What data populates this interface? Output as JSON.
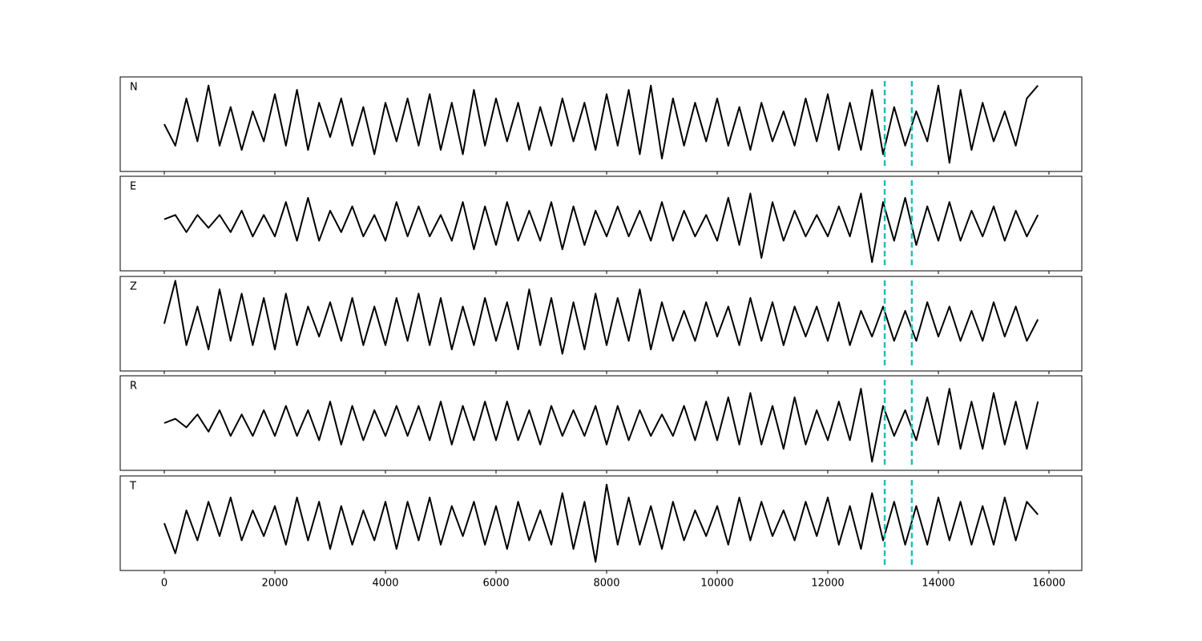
{
  "chart_data": {
    "type": "line",
    "color": "#000000",
    "grid": false,
    "xlim": [
      -797,
      16594
    ],
    "xticks": [
      0,
      2000,
      4000,
      6000,
      8000,
      10000,
      12000,
      14000,
      16000
    ],
    "ylim": [
      -1.1,
      1.1
    ],
    "vlines": [
      13030,
      13520
    ],
    "vline_color": "#20c0b8",
    "vline_style": "dashed",
    "x": [
      0,
      200,
      400,
      600,
      800,
      1000,
      1200,
      1400,
      1600,
      1800,
      2000,
      2200,
      2400,
      2600,
      2800,
      3000,
      3200,
      3400,
      3600,
      3800,
      4000,
      4200,
      4400,
      4600,
      4800,
      5000,
      5200,
      5400,
      5600,
      5800,
      6000,
      6200,
      6400,
      6600,
      6800,
      7000,
      7200,
      7400,
      7600,
      7800,
      8000,
      8200,
      8400,
      8600,
      8800,
      9000,
      9200,
      9400,
      9600,
      9800,
      10000,
      10200,
      10400,
      10600,
      10800,
      11000,
      11200,
      11400,
      11600,
      11800,
      12000,
      12200,
      12400,
      12600,
      12800,
      13000,
      13200,
      13400,
      13600,
      13800,
      14000,
      14200,
      14400,
      14600,
      14800,
      15000,
      15200,
      15400,
      15600,
      15800
    ],
    "series": [
      {
        "name": "N",
        "values": [
          0.0,
          -0.5,
          0.6,
          -0.4,
          0.9,
          -0.5,
          0.4,
          -0.6,
          0.3,
          -0.4,
          0.7,
          -0.5,
          0.8,
          -0.6,
          0.5,
          -0.3,
          0.6,
          -0.5,
          0.4,
          -0.7,
          0.5,
          -0.4,
          0.6,
          -0.5,
          0.7,
          -0.6,
          0.5,
          -0.7,
          0.8,
          -0.5,
          0.6,
          -0.4,
          0.5,
          -0.6,
          0.4,
          -0.5,
          0.6,
          -0.4,
          0.5,
          -0.6,
          0.7,
          -0.5,
          0.8,
          -0.7,
          0.9,
          -0.8,
          0.6,
          -0.5,
          0.5,
          -0.4,
          0.6,
          -0.5,
          0.4,
          -0.6,
          0.5,
          -0.4,
          0.3,
          -0.5,
          0.6,
          -0.4,
          0.7,
          -0.6,
          0.5,
          -0.6,
          0.8,
          -0.7,
          0.4,
          -0.5,
          0.3,
          -0.4,
          0.9,
          -0.9,
          0.8,
          -0.6,
          0.5,
          -0.4,
          0.3,
          -0.5,
          0.6,
          0.9
        ]
      },
      {
        "name": "E",
        "values": [
          0.1,
          0.2,
          -0.2,
          0.2,
          -0.1,
          0.2,
          -0.2,
          0.3,
          -0.3,
          0.2,
          -0.3,
          0.5,
          -0.4,
          0.6,
          -0.4,
          0.3,
          -0.2,
          0.4,
          -0.3,
          0.2,
          -0.4,
          0.5,
          -0.3,
          0.4,
          -0.3,
          0.2,
          -0.4,
          0.5,
          -0.6,
          0.4,
          -0.5,
          0.5,
          -0.4,
          0.3,
          -0.4,
          0.5,
          -0.6,
          0.4,
          -0.5,
          0.3,
          -0.3,
          0.4,
          -0.3,
          0.3,
          -0.4,
          0.5,
          -0.4,
          0.3,
          -0.3,
          0.2,
          -0.4,
          0.6,
          -0.5,
          0.7,
          -0.8,
          0.5,
          -0.4,
          0.3,
          -0.3,
          0.2,
          -0.3,
          0.4,
          -0.3,
          0.7,
          -0.9,
          0.5,
          -0.4,
          0.6,
          -0.5,
          0.4,
          -0.4,
          0.5,
          -0.4,
          0.3,
          -0.3,
          0.4,
          -0.4,
          0.3,
          -0.3,
          0.2
        ]
      },
      {
        "name": "Z",
        "values": [
          0.0,
          1.0,
          -0.5,
          0.4,
          -0.6,
          0.8,
          -0.4,
          0.7,
          -0.5,
          0.6,
          -0.6,
          0.7,
          -0.5,
          0.4,
          -0.3,
          0.5,
          -0.4,
          0.6,
          -0.5,
          0.4,
          -0.5,
          0.6,
          -0.4,
          0.7,
          -0.5,
          0.6,
          -0.6,
          0.4,
          -0.5,
          0.6,
          -0.4,
          0.5,
          -0.6,
          0.8,
          -0.5,
          0.6,
          -0.7,
          0.5,
          -0.6,
          0.7,
          -0.5,
          0.6,
          -0.4,
          0.8,
          -0.6,
          0.5,
          -0.4,
          0.3,
          -0.4,
          0.5,
          -0.3,
          0.4,
          -0.5,
          0.6,
          -0.4,
          0.5,
          -0.5,
          0.4,
          -0.3,
          0.4,
          -0.4,
          0.5,
          -0.5,
          0.3,
          -0.3,
          0.4,
          -0.4,
          0.3,
          -0.4,
          0.5,
          -0.3,
          0.4,
          -0.4,
          0.3,
          -0.4,
          0.5,
          -0.3,
          0.4,
          -0.4,
          0.1
        ]
      },
      {
        "name": "R",
        "values": [
          0.0,
          0.1,
          -0.1,
          0.2,
          -0.2,
          0.3,
          -0.3,
          0.2,
          -0.3,
          0.3,
          -0.3,
          0.4,
          -0.3,
          0.3,
          -0.4,
          0.5,
          -0.5,
          0.4,
          -0.4,
          0.3,
          -0.3,
          0.4,
          -0.3,
          0.4,
          -0.4,
          0.5,
          -0.5,
          0.4,
          -0.4,
          0.5,
          -0.4,
          0.5,
          -0.4,
          0.3,
          -0.5,
          0.4,
          -0.3,
          0.3,
          -0.3,
          0.4,
          -0.5,
          0.4,
          -0.4,
          0.3,
          -0.3,
          0.2,
          -0.3,
          0.4,
          -0.4,
          0.5,
          -0.4,
          0.6,
          -0.5,
          0.7,
          -0.5,
          0.4,
          -0.6,
          0.6,
          -0.5,
          0.3,
          -0.4,
          0.5,
          -0.4,
          0.8,
          -0.9,
          0.4,
          -0.3,
          0.3,
          -0.4,
          0.6,
          -0.5,
          0.8,
          -0.6,
          0.5,
          -0.6,
          0.7,
          -0.5,
          0.5,
          -0.6,
          0.5
        ]
      },
      {
        "name": "T",
        "values": [
          0.0,
          -0.7,
          0.3,
          -0.4,
          0.5,
          -0.3,
          0.6,
          -0.4,
          0.3,
          -0.3,
          0.4,
          -0.5,
          0.6,
          -0.4,
          0.5,
          -0.6,
          0.4,
          -0.5,
          0.3,
          -0.4,
          0.5,
          -0.6,
          0.5,
          -0.4,
          0.6,
          -0.5,
          0.4,
          -0.3,
          0.5,
          -0.5,
          0.4,
          -0.6,
          0.5,
          -0.4,
          0.3,
          -0.5,
          0.7,
          -0.6,
          0.5,
          -0.9,
          0.9,
          -0.5,
          0.6,
          -0.5,
          0.4,
          -0.6,
          0.5,
          -0.4,
          0.3,
          -0.3,
          0.4,
          -0.5,
          0.6,
          -0.4,
          0.5,
          -0.3,
          0.3,
          -0.4,
          0.5,
          -0.3,
          0.6,
          -0.5,
          0.4,
          -0.6,
          0.7,
          -0.4,
          0.5,
          -0.5,
          0.4,
          -0.5,
          0.6,
          -0.4,
          0.5,
          -0.5,
          0.4,
          -0.5,
          0.6,
          -0.4,
          0.5,
          0.2
        ]
      }
    ]
  }
}
